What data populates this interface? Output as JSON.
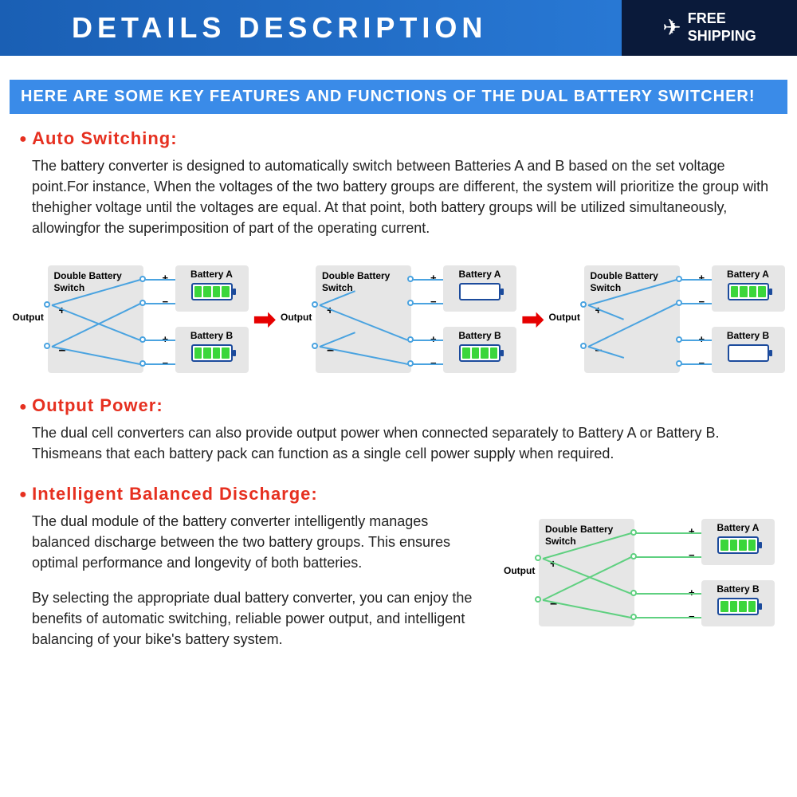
{
  "header": {
    "title": "DETAILS   DESCRIPTION",
    "shipping_line1": "FREE",
    "shipping_line2": "SHIPPING"
  },
  "subheader": "HERE ARE SOME KEY FEATURES AND FUNCTIONS OF THE DUAL BATTERY SWITCHER!",
  "feature1": {
    "title": "Auto Switching:",
    "body": "The battery converter is designed to automatically switch between Batteries A and B based on the set voltage point.For instance, When the voltages of the two battery groups are different, the system will prioritize the group with thehigher voltage until the voltages are equal. At that point, both battery groups will be utilized simultaneously, allowingfor the superimposition of part of the operating current."
  },
  "feature2": {
    "title": "Output Power:",
    "body": "The dual cell converters can also provide output power when connected separately to Battery A or Battery B. Thismeans that each battery pack can function as a single cell power supply when required."
  },
  "feature3": {
    "title": "Intelligent Balanced Discharge:",
    "p1": "The dual module of the battery converter intelligently manages balanced discharge between the two battery groups. This ensures optimal performance and longevity of both batteries.",
    "p2": "By selecting the appropriate dual battery converter, you can enjoy the benefits of automatic switching, reliable power output, and intelligent balancing of your bike's battery system."
  },
  "diagram": {
    "switch_label": "Double Battery Switch",
    "output_label": "Output",
    "battery_a": "Battery A",
    "battery_b": "Battery B",
    "states": [
      {
        "a_full": true,
        "b_full": true,
        "connect_a": true,
        "connect_b": true,
        "line_color": "#4aa3e0"
      },
      {
        "a_full": false,
        "b_full": true,
        "connect_a": false,
        "connect_b": true,
        "line_color": "#4aa3e0"
      },
      {
        "a_full": true,
        "b_full": false,
        "connect_a": true,
        "connect_b": false,
        "line_color": "#4aa3e0"
      }
    ],
    "balanced": {
      "a_full": true,
      "b_full": true,
      "connect_a": true,
      "connect_b": true,
      "line_color": "#5fd080"
    }
  },
  "colors": {
    "accent_blue": "#3a8be8",
    "title_red": "#e63020",
    "arrow_red": "#e60000",
    "node_blue": "#4aa3e0",
    "batt_green": "#3bd63b",
    "box_grey": "#e6e6e6"
  }
}
